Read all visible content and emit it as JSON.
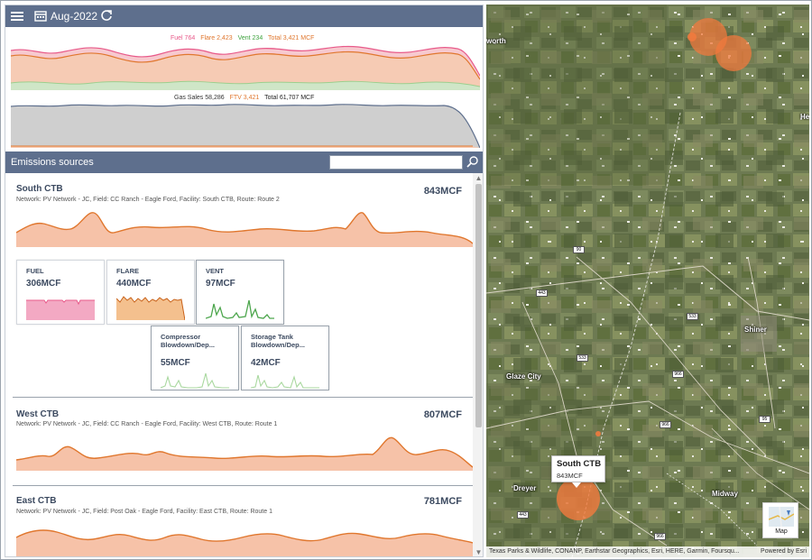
{
  "topbar": {
    "month": "Aug-2022",
    "menu_icon": "hamburger-icon",
    "calendar_icon": "calendar-icon",
    "refresh_icon": "refresh-icon"
  },
  "summary": {
    "emissions_legend": {
      "fuel": "Fuel 764",
      "flare": "Flare 2,423",
      "vent": "Vent 234",
      "total": "Total 3,421 MCF"
    },
    "gas_legend": {
      "sales": "Gas Sales 58,286",
      "ftv": "FTV 3,421",
      "total": "Total 61,707 MCF"
    },
    "colors": {
      "fuel": "#e85a8a",
      "flare": "#e0772e",
      "vent": "#3fa33f",
      "sales": "#5e6f8d",
      "total": "#222222"
    }
  },
  "sources": {
    "title": "Emissions sources",
    "search_placeholder": "",
    "search_icon": "search-icon",
    "items": [
      {
        "name": "South CTB",
        "meta": "Network: PV Network - JC, Field: CC Ranch - Eagle Ford, Facility: South CTB, Route: Route 2",
        "total": "843MCF"
      },
      {
        "name": "West CTB",
        "meta": "Network: PV Network - JC, Field: CC Ranch - Eagle Ford, Facility: West CTB, Route: Route 1",
        "total": "807MCF"
      },
      {
        "name": "East CTB",
        "meta": "Network: PV Network - JC, Field: Post Oak - Eagle Ford, Facility: East CTB, Route: Route 1",
        "total": "781MCF"
      }
    ],
    "cards": [
      {
        "label": "FUEL",
        "value": "306MCF"
      },
      {
        "label": "FLARE",
        "value": "440MCF"
      },
      {
        "label": "VENT",
        "value": "97MCF"
      },
      {
        "label1": "Compressor",
        "label2": "Blowdown/Dep...",
        "value": "55MCF"
      },
      {
        "label1": "Storage Tank",
        "label2": "Blowdown/Dep...",
        "value": "42MCF"
      }
    ]
  },
  "map": {
    "places": [
      "worth",
      "Shiner",
      "Glaze City",
      "Dreyer",
      "Midway",
      "He"
    ],
    "roads": [
      "90",
      "443",
      "533",
      "533",
      "966",
      "966",
      "95",
      "443",
      "966"
    ],
    "popup": {
      "name": "South CTB",
      "value": "843MCF"
    },
    "basemap_label": "Map",
    "attribution": "Texas Parks & Wildlife, CONANP, Earthstar Geographics, Esri, HERE, Garmin, Foursqu...",
    "powered": "Powered by Esri"
  }
}
